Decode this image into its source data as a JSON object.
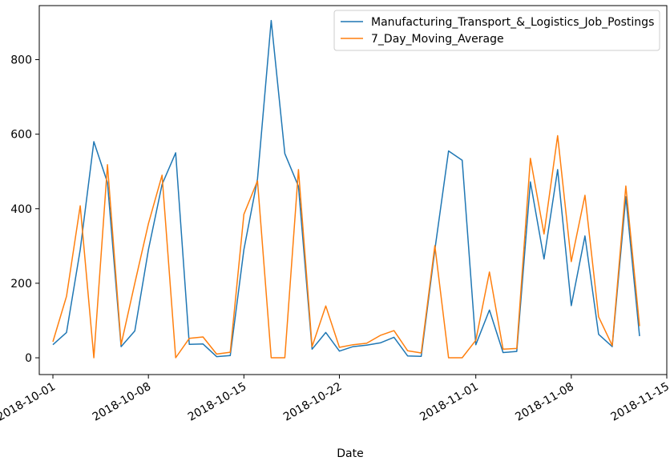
{
  "chart_data": {
    "type": "line",
    "xlabel": "Date",
    "ylabel": "",
    "xlim": [
      "2018-09-30",
      "2018-11-15"
    ],
    "ylim": [
      -45,
      945
    ],
    "grid": false,
    "legend_position": "top-right",
    "x_ticks": [
      "2018-10-01",
      "2018-10-08",
      "2018-10-15",
      "2018-10-22",
      "2018-11-01",
      "2018-11-08",
      "2018-11-15"
    ],
    "y_ticks": [
      0,
      200,
      400,
      600,
      800
    ],
    "x": [
      "2018-10-01",
      "2018-10-02",
      "2018-10-03",
      "2018-10-04",
      "2018-10-05",
      "2018-10-06",
      "2018-10-07",
      "2018-10-08",
      "2018-10-09",
      "2018-10-10",
      "2018-10-11",
      "2018-10-12",
      "2018-10-13",
      "2018-10-14",
      "2018-10-15",
      "2018-10-16",
      "2018-10-17",
      "2018-10-18",
      "2018-10-19",
      "2018-10-20",
      "2018-10-21",
      "2018-10-22",
      "2018-10-23",
      "2018-10-24",
      "2018-10-25",
      "2018-10-26",
      "2018-10-27",
      "2018-10-28",
      "2018-10-29",
      "2018-10-30",
      "2018-10-31",
      "2018-11-01",
      "2018-11-02",
      "2018-11-03",
      "2018-11-04",
      "2018-11-05",
      "2018-11-06",
      "2018-11-07",
      "2018-11-08",
      "2018-11-09",
      "2018-11-10",
      "2018-11-11",
      "2018-11-12",
      "2018-11-13"
    ],
    "series": [
      {
        "name": "Manufacturing_Transport_&_Logistics_Job_Postings",
        "color": "#1f77b4",
        "values": [
          35,
          68,
          290,
          580,
          470,
          30,
          72,
          290,
          465,
          550,
          36,
          37,
          3,
          6,
          290,
          480,
          905,
          548,
          460,
          23,
          68,
          18,
          30,
          34,
          40,
          55,
          5,
          4,
          290,
          555,
          530,
          35,
          128,
          14,
          17,
          472,
          265,
          505,
          140,
          327,
          63,
          30,
          432,
          58
        ]
      },
      {
        "name": "7_Day_Moving_Average",
        "color": "#ff7f0e",
        "values": [
          43,
          165,
          408,
          0,
          518,
          35,
          200,
          360,
          490,
          0,
          52,
          56,
          10,
          15,
          385,
          475,
          0,
          0,
          505,
          30,
          139,
          28,
          35,
          39,
          60,
          73,
          19,
          13,
          301,
          0,
          0,
          47,
          230,
          23,
          25,
          535,
          332,
          596,
          258,
          436,
          110,
          33,
          461,
          85
        ]
      }
    ]
  }
}
